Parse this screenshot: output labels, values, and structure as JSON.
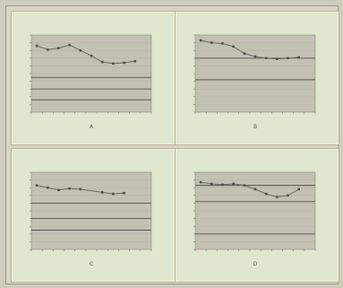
{
  "chart_data": [
    {
      "type": "line",
      "title": "",
      "xlabel": "A",
      "ylabel": "",
      "panel": "top-left",
      "ylim": [
        0,
        10
      ],
      "grid": true,
      "reference_lines": [
        4.5,
        3.0,
        1.6
      ],
      "points": [
        {
          "x": 1,
          "y": 8.6
        },
        {
          "x": 2,
          "y": 8.1
        },
        {
          "x": 3,
          "y": 8.3
        },
        {
          "x": 4,
          "y": 8.7
        },
        {
          "x": 5,
          "y": 8.0
        },
        {
          "x": 6,
          "y": 7.3
        },
        {
          "x": 7,
          "y": 6.5
        },
        {
          "x": 8,
          "y": 6.3
        },
        {
          "x": 9,
          "y": 6.4
        },
        {
          "x": 10,
          "y": 6.6
        }
      ]
    },
    {
      "type": "line",
      "title": "",
      "xlabel": "B",
      "ylabel": "",
      "panel": "top-right",
      "ylim": [
        0,
        10
      ],
      "grid": true,
      "reference_lines": [
        7.0,
        4.2
      ],
      "points": [
        {
          "x": 1,
          "y": 9.3
        },
        {
          "x": 2,
          "y": 9.0
        },
        {
          "x": 3,
          "y": 8.9
        },
        {
          "x": 4,
          "y": 8.5
        },
        {
          "x": 5,
          "y": 7.6
        },
        {
          "x": 6,
          "y": 7.2
        },
        {
          "x": 7,
          "y": 7.0
        },
        {
          "x": 8,
          "y": 6.9
        },
        {
          "x": 9,
          "y": 7.0
        },
        {
          "x": 10,
          "y": 7.1
        }
      ]
    },
    {
      "type": "line",
      "title": "",
      "xlabel": "C",
      "ylabel": "",
      "panel": "bottom-left",
      "ylim": [
        0,
        10
      ],
      "grid": true,
      "reference_lines": [
        6.0,
        4.0,
        2.5
      ],
      "points": [
        {
          "x": 1,
          "y": 8.3
        },
        {
          "x": 2,
          "y": 8.0
        },
        {
          "x": 3,
          "y": 7.7
        },
        {
          "x": 4,
          "y": 7.9
        },
        {
          "x": 5,
          "y": 7.8
        },
        {
          "x": 7,
          "y": 7.4
        },
        {
          "x": 8,
          "y": 7.2
        },
        {
          "x": 9,
          "y": 7.3
        }
      ]
    },
    {
      "type": "line",
      "title": "",
      "xlabel": "D",
      "ylabel": "",
      "panel": "bottom-right",
      "ylim": [
        0,
        10
      ],
      "grid": true,
      "reference_lines": [
        8.3,
        6.2,
        2.0
      ],
      "points": [
        {
          "x": 1,
          "y": 8.7
        },
        {
          "x": 2,
          "y": 8.5
        },
        {
          "x": 3,
          "y": 8.4
        },
        {
          "x": 4,
          "y": 8.5
        },
        {
          "x": 5,
          "y": 8.3
        },
        {
          "x": 6,
          "y": 7.8
        },
        {
          "x": 7,
          "y": 7.2
        },
        {
          "x": 8,
          "y": 6.8
        },
        {
          "x": 9,
          "y": 7.0
        },
        {
          "x": 10,
          "y": 7.8
        }
      ]
    }
  ]
}
